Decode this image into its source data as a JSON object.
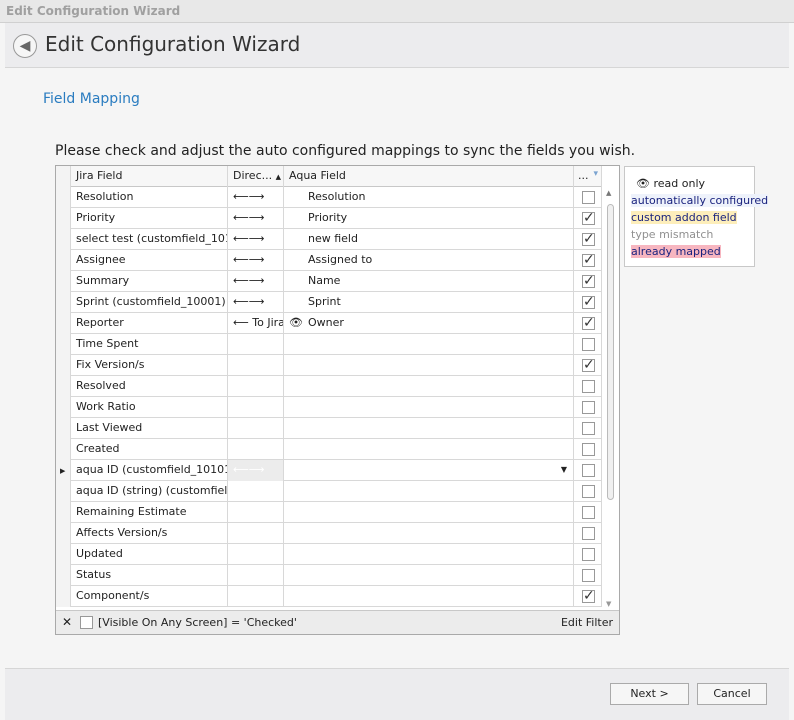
{
  "window_title": "Edit Configuration Wizard",
  "header": {
    "title": "Edit Configuration Wizard",
    "back_icon": "arrow-left-circle"
  },
  "section_title": "Field Mapping",
  "instructions": "Please check and adjust the auto configured mappings to sync the fields you wish.",
  "grid": {
    "columns": [
      "Jira Field",
      "Direc...",
      "Aqua Field",
      "..."
    ],
    "rows": [
      {
        "jira": "Resolution",
        "dir": "⟵⟶",
        "aqua": "Resolution",
        "checked": false
      },
      {
        "jira": "Priority",
        "dir": "⟵⟶",
        "aqua": "Priority",
        "checked": true
      },
      {
        "jira": "select test (customfield_101...",
        "dir": "⟵⟶",
        "aqua": "new field",
        "checked": true
      },
      {
        "jira": "Assignee",
        "dir": "⟵⟶",
        "aqua": "Assigned to",
        "checked": true
      },
      {
        "jira": "Summary",
        "dir": "⟵⟶",
        "aqua": "Name",
        "checked": true
      },
      {
        "jira": "Sprint (customfield_10001)",
        "dir": "⟵⟶",
        "aqua": "Sprint",
        "checked": true
      },
      {
        "jira": "Reporter",
        "dir": "⟵ To Jira",
        "aqua": "Owner",
        "read_only": true,
        "checked": true
      },
      {
        "jira": "Time Spent",
        "dir": "",
        "aqua": "",
        "checked": false
      },
      {
        "jira": "Fix Version/s",
        "dir": "",
        "aqua": "",
        "checked": true
      },
      {
        "jira": "Resolved",
        "dir": "",
        "aqua": "",
        "checked": false
      },
      {
        "jira": "Work Ratio",
        "dir": "",
        "aqua": "",
        "checked": false
      },
      {
        "jira": "Last Viewed",
        "dir": "",
        "aqua": "",
        "checked": false
      },
      {
        "jira": "Created",
        "dir": "",
        "aqua": "",
        "checked": false
      },
      {
        "jira": "aqua ID (customfield_10101)",
        "dir": "⟵⟶",
        "aqua": "",
        "checked": false,
        "selected": true
      },
      {
        "jira": "aqua ID (string) (customfield...",
        "dir": "",
        "aqua": "",
        "checked": false
      },
      {
        "jira": "Remaining Estimate",
        "dir": "",
        "aqua": "",
        "checked": false
      },
      {
        "jira": "Affects Version/s",
        "dir": "",
        "aqua": "",
        "checked": false
      },
      {
        "jira": "Updated",
        "dir": "",
        "aqua": "",
        "checked": false
      },
      {
        "jira": "Status",
        "dir": "",
        "aqua": "",
        "checked": false
      },
      {
        "jira": "Component/s",
        "dir": "",
        "aqua": "",
        "checked": true
      }
    ],
    "filter_text": "[Visible On Any Screen] = 'Checked'",
    "edit_filter": "Edit Filter"
  },
  "legend": {
    "read_only": "read only",
    "auto": "automatically configured",
    "custom": "custom addon field",
    "mismatch": "type mismatch",
    "mapped": "already mapped",
    "colors": {
      "auto": "#eef2fb",
      "custom": "#fdeebb",
      "mismatch": "#909090",
      "mapped": "#f7b6c0"
    }
  },
  "footer": {
    "next": "Next >",
    "cancel": "Cancel"
  }
}
